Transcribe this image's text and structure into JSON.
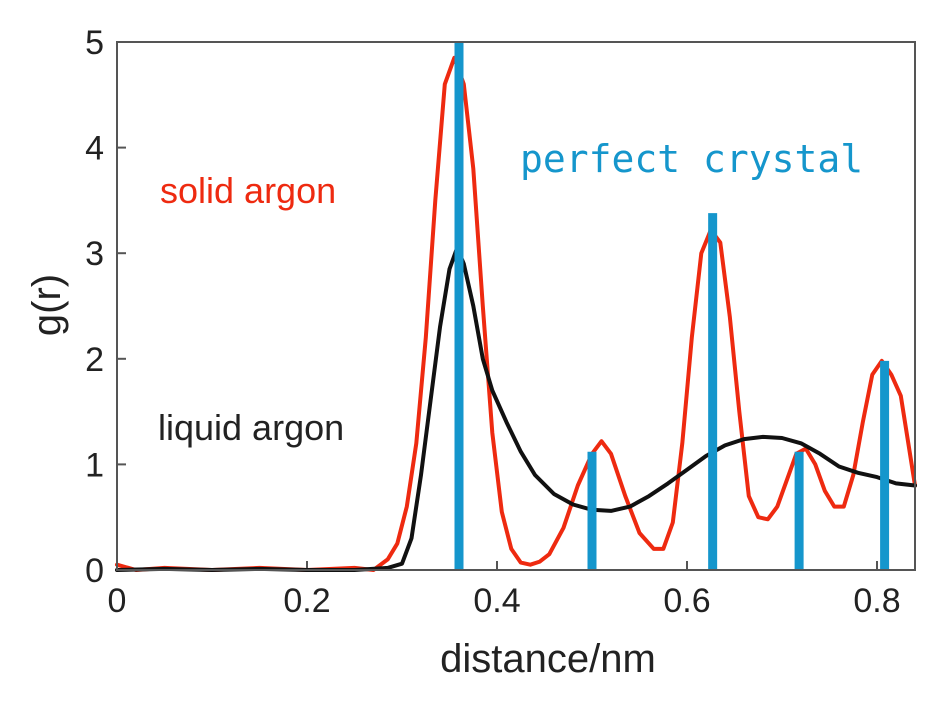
{
  "chart_data": {
    "type": "line",
    "xlabel": "distance/nm",
    "ylabel": "g(r)",
    "xlim": [
      0,
      0.84
    ],
    "ylim": [
      0,
      5
    ],
    "x_ticks": [
      {
        "value": 0,
        "label": "0"
      },
      {
        "value": 0.2,
        "label": "0.2"
      },
      {
        "value": 0.4,
        "label": "0.4"
      },
      {
        "value": 0.6,
        "label": "0.6"
      },
      {
        "value": 0.8,
        "label": "0.8"
      }
    ],
    "y_ticks": [
      {
        "value": 0,
        "label": "0"
      },
      {
        "value": 1,
        "label": "1"
      },
      {
        "value": 2,
        "label": "2"
      },
      {
        "value": 3,
        "label": "3"
      },
      {
        "value": 4,
        "label": "4"
      },
      {
        "value": 5,
        "label": "5"
      }
    ],
    "series": [
      {
        "name": "solid argon",
        "color": "#ee2a10",
        "points": [
          [
            0.0,
            0.05
          ],
          [
            0.02,
            0.0
          ],
          [
            0.05,
            0.02
          ],
          [
            0.1,
            0.0
          ],
          [
            0.15,
            0.02
          ],
          [
            0.2,
            0.0
          ],
          [
            0.25,
            0.02
          ],
          [
            0.27,
            0.0
          ],
          [
            0.285,
            0.1
          ],
          [
            0.295,
            0.25
          ],
          [
            0.305,
            0.6
          ],
          [
            0.315,
            1.2
          ],
          [
            0.325,
            2.2
          ],
          [
            0.335,
            3.5
          ],
          [
            0.345,
            4.6
          ],
          [
            0.355,
            4.85
          ],
          [
            0.365,
            4.6
          ],
          [
            0.375,
            3.8
          ],
          [
            0.385,
            2.5
          ],
          [
            0.395,
            1.3
          ],
          [
            0.405,
            0.55
          ],
          [
            0.415,
            0.2
          ],
          [
            0.425,
            0.07
          ],
          [
            0.435,
            0.05
          ],
          [
            0.445,
            0.08
          ],
          [
            0.455,
            0.15
          ],
          [
            0.47,
            0.4
          ],
          [
            0.485,
            0.8
          ],
          [
            0.5,
            1.1
          ],
          [
            0.51,
            1.22
          ],
          [
            0.52,
            1.1
          ],
          [
            0.535,
            0.7
          ],
          [
            0.55,
            0.35
          ],
          [
            0.565,
            0.2
          ],
          [
            0.575,
            0.2
          ],
          [
            0.585,
            0.45
          ],
          [
            0.595,
            1.2
          ],
          [
            0.605,
            2.2
          ],
          [
            0.615,
            3.0
          ],
          [
            0.625,
            3.22
          ],
          [
            0.635,
            3.1
          ],
          [
            0.645,
            2.4
          ],
          [
            0.655,
            1.5
          ],
          [
            0.665,
            0.7
          ],
          [
            0.675,
            0.5
          ],
          [
            0.685,
            0.48
          ],
          [
            0.695,
            0.6
          ],
          [
            0.705,
            0.85
          ],
          [
            0.715,
            1.1
          ],
          [
            0.725,
            1.15
          ],
          [
            0.735,
            1.0
          ],
          [
            0.745,
            0.75
          ],
          [
            0.755,
            0.6
          ],
          [
            0.765,
            0.6
          ],
          [
            0.775,
            0.9
          ],
          [
            0.785,
            1.4
          ],
          [
            0.795,
            1.85
          ],
          [
            0.805,
            1.98
          ],
          [
            0.815,
            1.85
          ],
          [
            0.825,
            1.65
          ],
          [
            0.84,
            0.8
          ]
        ]
      },
      {
        "name": "liquid argon",
        "color": "#111111",
        "points": [
          [
            0.0,
            0.0
          ],
          [
            0.05,
            0.01
          ],
          [
            0.1,
            0.0
          ],
          [
            0.15,
            0.01
          ],
          [
            0.2,
            0.0
          ],
          [
            0.25,
            0.0
          ],
          [
            0.285,
            0.02
          ],
          [
            0.3,
            0.06
          ],
          [
            0.31,
            0.3
          ],
          [
            0.32,
            0.9
          ],
          [
            0.33,
            1.6
          ],
          [
            0.34,
            2.3
          ],
          [
            0.35,
            2.85
          ],
          [
            0.358,
            3.05
          ],
          [
            0.365,
            2.9
          ],
          [
            0.375,
            2.5
          ],
          [
            0.385,
            2.0
          ],
          [
            0.395,
            1.7
          ],
          [
            0.41,
            1.4
          ],
          [
            0.425,
            1.12
          ],
          [
            0.44,
            0.9
          ],
          [
            0.46,
            0.72
          ],
          [
            0.48,
            0.62
          ],
          [
            0.5,
            0.57
          ],
          [
            0.52,
            0.56
          ],
          [
            0.54,
            0.6
          ],
          [
            0.56,
            0.7
          ],
          [
            0.58,
            0.82
          ],
          [
            0.6,
            0.95
          ],
          [
            0.62,
            1.08
          ],
          [
            0.64,
            1.18
          ],
          [
            0.66,
            1.24
          ],
          [
            0.68,
            1.26
          ],
          [
            0.7,
            1.25
          ],
          [
            0.72,
            1.2
          ],
          [
            0.74,
            1.1
          ],
          [
            0.76,
            0.98
          ],
          [
            0.78,
            0.92
          ],
          [
            0.8,
            0.88
          ],
          [
            0.82,
            0.82
          ],
          [
            0.84,
            0.8
          ]
        ]
      }
    ],
    "perfect_crystal": {
      "color": "#1596cc",
      "lines": [
        {
          "x": 0.36,
          "y": 5.0
        },
        {
          "x": 0.5,
          "y": 1.12
        },
        {
          "x": 0.627,
          "y": 3.38
        },
        {
          "x": 0.718,
          "y": 1.12
        },
        {
          "x": 0.808,
          "y": 1.98
        }
      ]
    },
    "labels": {
      "solid": "solid argon",
      "liquid": "liquid argon",
      "crystal": "perfect crystal"
    }
  }
}
